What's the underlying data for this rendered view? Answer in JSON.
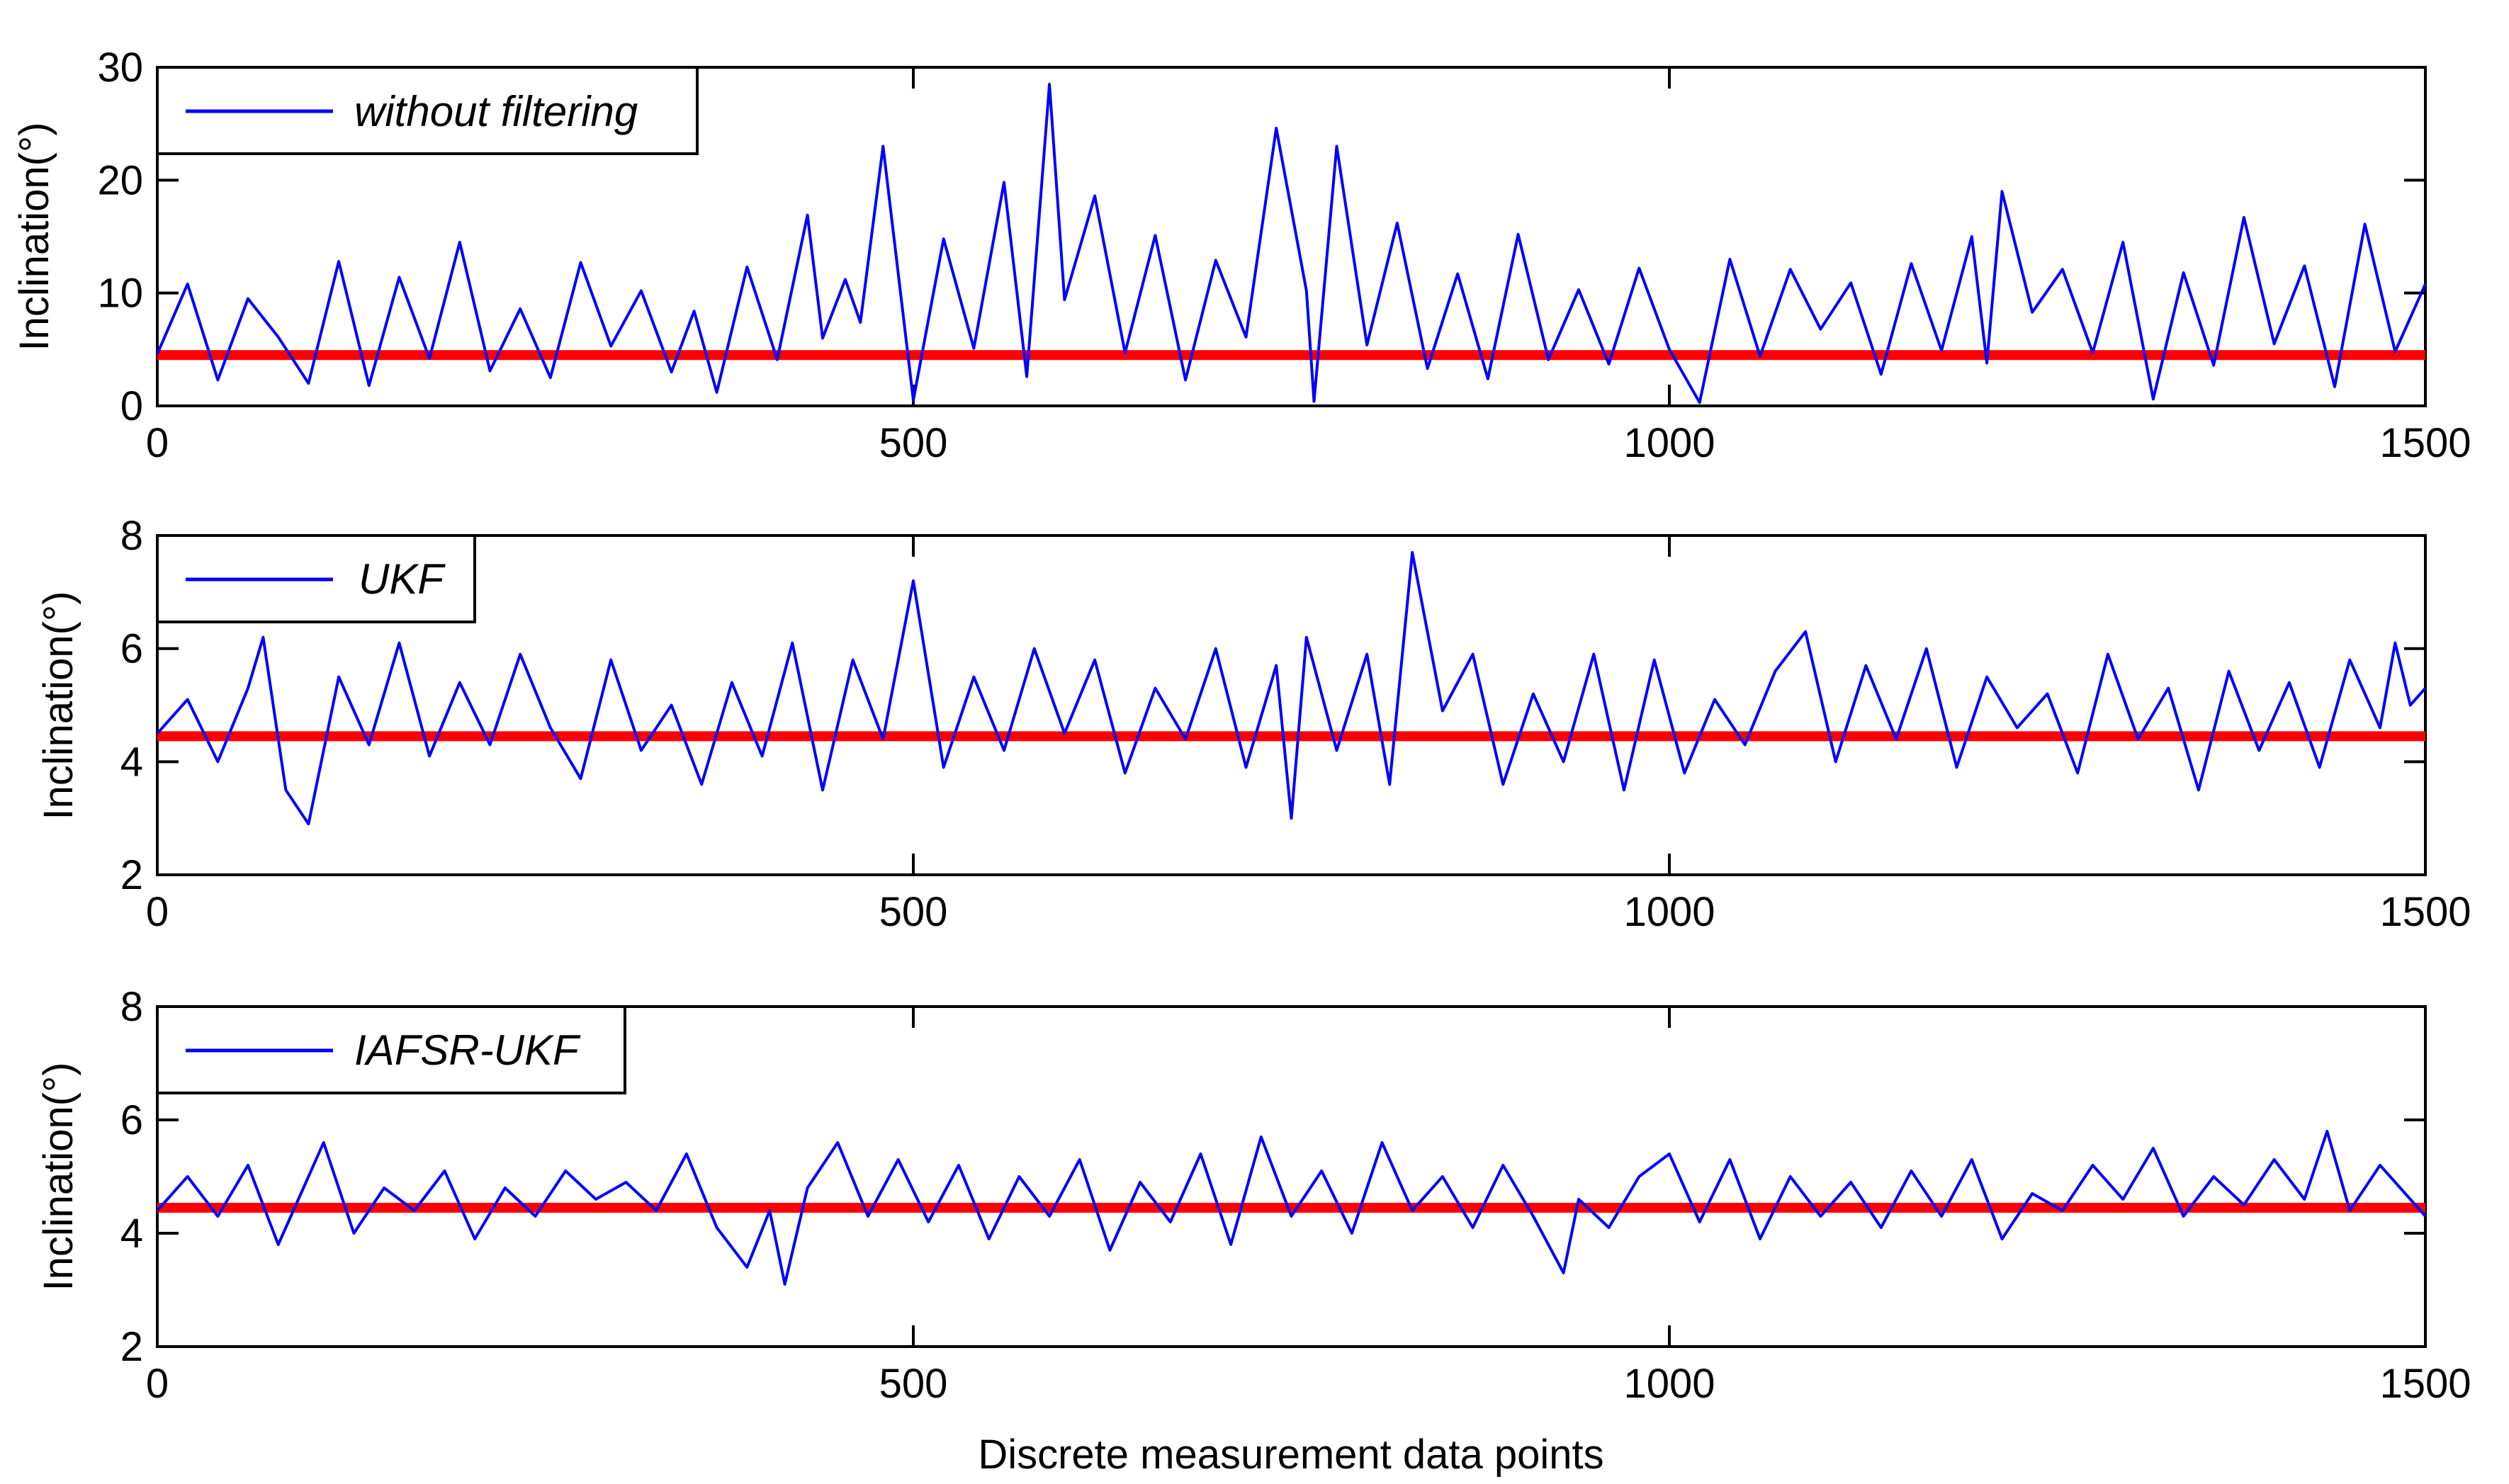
{
  "figure": {
    "xlabel": "Discrete measurement data points"
  },
  "chart_data": [
    {
      "type": "line",
      "xlim": [
        0,
        1500
      ],
      "ylim": [
        0,
        30
      ],
      "xticks": [
        0,
        500,
        1000,
        1500
      ],
      "xtick_labels": [
        "0",
        "500",
        "1000",
        "1500"
      ],
      "yticks": [
        0,
        10,
        20,
        30
      ],
      "ytick_labels": [
        "0",
        "10",
        "20",
        "30"
      ],
      "ylabel": "Inclination(°)",
      "legend": {
        "label": "without filtering",
        "position": "top-left"
      },
      "reference": {
        "name": "true inclination",
        "value": 4.5
      },
      "series": [
        {
          "name": "without filtering",
          "x": [
            0,
            20,
            40,
            60,
            80,
            100,
            120,
            140,
            160,
            180,
            200,
            220,
            240,
            260,
            280,
            300,
            320,
            340,
            355,
            370,
            390,
            410,
            430,
            440,
            455,
            465,
            480,
            500,
            520,
            540,
            560,
            575,
            590,
            600,
            620,
            640,
            660,
            680,
            700,
            720,
            740,
            760,
            765,
            780,
            800,
            820,
            840,
            860,
            880,
            900,
            920,
            940,
            960,
            980,
            1000,
            1020,
            1040,
            1060,
            1080,
            1100,
            1120,
            1140,
            1160,
            1180,
            1200,
            1210,
            1220,
            1240,
            1260,
            1280,
            1300,
            1320,
            1340,
            1360,
            1380,
            1400,
            1420,
            1440,
            1460,
            1480,
            1500
          ],
          "y": [
            4.6,
            10.8,
            2.3,
            9.5,
            6.1,
            2.0,
            12.8,
            1.8,
            11.4,
            4.2,
            14.5,
            3.1,
            8.6,
            2.5,
            12.7,
            5.3,
            10.2,
            3.0,
            8.4,
            1.2,
            12.3,
            4.1,
            16.9,
            6.0,
            11.2,
            7.4,
            23.0,
            0.5,
            14.8,
            5.1,
            19.8,
            2.6,
            28.5,
            9.4,
            18.6,
            4.7,
            15.1,
            2.3,
            12.9,
            6.1,
            24.6,
            10.2,
            0.4,
            23.0,
            5.4,
            16.2,
            3.3,
            11.7,
            2.4,
            15.2,
            4.1,
            10.3,
            3.7,
            12.2,
            5.0,
            0.3,
            13.0,
            4.4,
            12.1,
            6.8,
            10.9,
            2.8,
            12.6,
            4.9,
            15.0,
            3.8,
            19.0,
            8.3,
            12.1,
            4.7,
            14.5,
            0.6,
            11.8,
            3.6,
            16.7,
            5.5,
            12.4,
            1.7,
            16.1,
            4.8,
            10.8
          ]
        }
      ]
    },
    {
      "type": "line",
      "xlim": [
        0,
        1500
      ],
      "ylim": [
        2,
        8
      ],
      "xticks": [
        0,
        500,
        1000,
        1500
      ],
      "xtick_labels": [
        "0",
        "500",
        "1000",
        "1500"
      ],
      "yticks": [
        2,
        4,
        6,
        8
      ],
      "ytick_labels": [
        "2",
        "4",
        "6",
        "8"
      ],
      "ylabel": "Inclination(°)",
      "legend": {
        "label": "UKF",
        "position": "top-left"
      },
      "reference": {
        "name": "true inclination",
        "value": 4.45
      },
      "series": [
        {
          "name": "UKF",
          "x": [
            0,
            20,
            40,
            60,
            70,
            85,
            100,
            120,
            140,
            160,
            180,
            200,
            220,
            240,
            260,
            280,
            300,
            320,
            340,
            360,
            380,
            400,
            420,
            440,
            460,
            480,
            500,
            520,
            540,
            560,
            580,
            600,
            620,
            640,
            660,
            680,
            700,
            720,
            740,
            750,
            760,
            780,
            800,
            815,
            830,
            850,
            870,
            890,
            910,
            930,
            950,
            970,
            990,
            1010,
            1030,
            1050,
            1070,
            1090,
            1110,
            1130,
            1150,
            1170,
            1190,
            1210,
            1230,
            1250,
            1270,
            1290,
            1310,
            1330,
            1350,
            1370,
            1390,
            1410,
            1430,
            1450,
            1470,
            1480,
            1490,
            1500
          ],
          "y": [
            4.5,
            5.1,
            4.0,
            5.3,
            6.2,
            3.5,
            2.9,
            5.5,
            4.3,
            6.1,
            4.1,
            5.4,
            4.3,
            5.9,
            4.6,
            3.7,
            5.8,
            4.2,
            5.0,
            3.6,
            5.4,
            4.1,
            6.1,
            3.5,
            5.8,
            4.4,
            7.2,
            3.9,
            5.5,
            4.2,
            6.0,
            4.5,
            5.8,
            3.8,
            5.3,
            4.4,
            6.0,
            3.9,
            5.7,
            3.0,
            6.2,
            4.2,
            5.9,
            3.6,
            7.7,
            4.9,
            5.9,
            3.6,
            5.2,
            4.0,
            5.9,
            3.5,
            5.8,
            3.8,
            5.1,
            4.3,
            5.6,
            6.3,
            4.0,
            5.7,
            4.4,
            6.0,
            3.9,
            5.5,
            4.6,
            5.2,
            3.8,
            5.9,
            4.4,
            5.3,
            3.5,
            5.6,
            4.2,
            5.4,
            3.9,
            5.8,
            4.6,
            6.1,
            5.0,
            5.3
          ]
        }
      ]
    },
    {
      "type": "line",
      "xlim": [
        0,
        1500
      ],
      "ylim": [
        2,
        8
      ],
      "xticks": [
        0,
        500,
        1000,
        1500
      ],
      "xtick_labels": [
        "0",
        "500",
        "1000",
        "1500"
      ],
      "yticks": [
        2,
        4,
        6,
        8
      ],
      "ytick_labels": [
        "2",
        "4",
        "6",
        "8"
      ],
      "ylabel": "Inclination(°)",
      "legend": {
        "label": "IAFSR-UKF",
        "position": "top-left"
      },
      "reference": {
        "name": "true inclination",
        "value": 4.45
      },
      "series": [
        {
          "name": "IAFSR-UKF",
          "x": [
            0,
            20,
            40,
            60,
            80,
            100,
            110,
            130,
            150,
            170,
            190,
            210,
            230,
            250,
            270,
            290,
            310,
            330,
            350,
            370,
            390,
            405,
            415,
            430,
            450,
            470,
            490,
            510,
            530,
            550,
            570,
            590,
            610,
            630,
            650,
            670,
            690,
            710,
            730,
            750,
            770,
            790,
            810,
            830,
            850,
            870,
            890,
            910,
            930,
            940,
            960,
            980,
            1000,
            1020,
            1040,
            1060,
            1080,
            1100,
            1120,
            1140,
            1160,
            1180,
            1200,
            1220,
            1240,
            1260,
            1280,
            1300,
            1320,
            1340,
            1360,
            1380,
            1400,
            1420,
            1435,
            1450,
            1470,
            1490,
            1500
          ],
          "y": [
            4.4,
            5.0,
            4.3,
            5.2,
            3.8,
            5.0,
            5.6,
            4.0,
            4.8,
            4.4,
            5.1,
            3.9,
            4.8,
            4.3,
            5.1,
            4.6,
            4.9,
            4.4,
            5.4,
            4.1,
            3.4,
            4.4,
            3.1,
            4.8,
            5.6,
            4.3,
            5.3,
            4.2,
            5.2,
            3.9,
            5.0,
            4.3,
            5.3,
            3.7,
            4.9,
            4.2,
            5.4,
            3.8,
            5.7,
            4.3,
            5.1,
            4.0,
            5.6,
            4.4,
            5.0,
            4.1,
            5.2,
            4.3,
            3.3,
            4.6,
            4.1,
            5.0,
            5.4,
            4.2,
            5.3,
            3.9,
            5.0,
            4.3,
            4.9,
            4.1,
            5.1,
            4.3,
            5.3,
            3.9,
            4.7,
            4.4,
            5.2,
            4.6,
            5.5,
            4.3,
            5.0,
            4.5,
            5.3,
            4.6,
            5.8,
            4.4,
            5.2,
            4.6,
            4.3
          ]
        }
      ]
    }
  ]
}
